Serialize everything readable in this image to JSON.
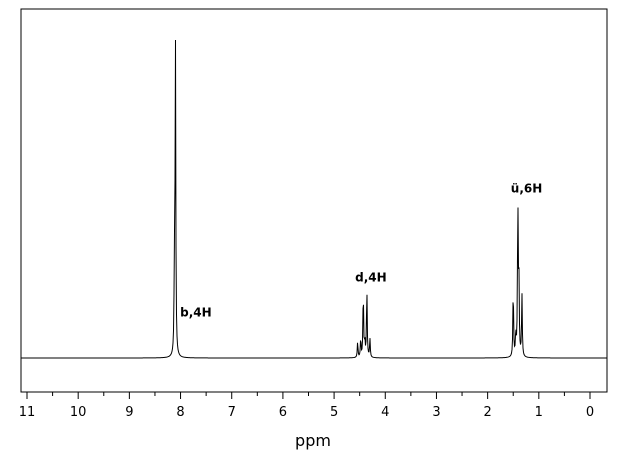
{
  "chart_data": {
    "type": "line",
    "title": "",
    "xlabel": "ppm",
    "ylabel": "",
    "xlim": [
      11,
      0
    ],
    "x_reversed": true,
    "ylim": [
      0,
      1
    ],
    "grid": false,
    "ticks": [
      {
        "value": 11,
        "label": "11"
      },
      {
        "value": 10,
        "label": "10"
      },
      {
        "value": 9,
        "label": "9"
      },
      {
        "value": 8,
        "label": "8"
      },
      {
        "value": 7,
        "label": "7"
      },
      {
        "value": 6,
        "label": "6"
      },
      {
        "value": 5,
        "label": "5"
      },
      {
        "value": 4,
        "label": "4"
      },
      {
        "value": 3,
        "label": "3"
      },
      {
        "value": 2,
        "label": "2"
      },
      {
        "value": 1,
        "label": "1"
      },
      {
        "value": 0,
        "label": "0"
      }
    ],
    "peak_groups": [
      {
        "label": "b,4H",
        "label_ppm": 7.7,
        "label_height": 0.13,
        "peaks": [
          {
            "ppm": 8.1,
            "height": 1.0
          },
          {
            "ppm": 8.12,
            "height": 0.25
          }
        ]
      },
      {
        "label": "d,4H",
        "label_ppm": 4.28,
        "label_height": 0.24,
        "peaks": [
          {
            "ppm": 4.54,
            "height": 0.05
          },
          {
            "ppm": 4.48,
            "height": 0.06
          },
          {
            "ppm": 4.43,
            "height": 0.21
          },
          {
            "ppm": 4.4,
            "height": 0.05
          },
          {
            "ppm": 4.36,
            "height": 0.22
          },
          {
            "ppm": 4.3,
            "height": 0.06
          }
        ]
      },
      {
        "label": "ü,6H",
        "label_ppm": 1.24,
        "label_height": 0.52,
        "peaks": [
          {
            "ppm": 1.5,
            "height": 0.22
          },
          {
            "ppm": 1.45,
            "height": 0.07
          },
          {
            "ppm": 1.41,
            "height": 0.49
          },
          {
            "ppm": 1.39,
            "height": 0.25
          },
          {
            "ppm": 1.33,
            "height": 0.2
          }
        ]
      }
    ],
    "colors": {
      "trace": "#000000",
      "frame": "#000000",
      "background": "#ffffff"
    }
  }
}
